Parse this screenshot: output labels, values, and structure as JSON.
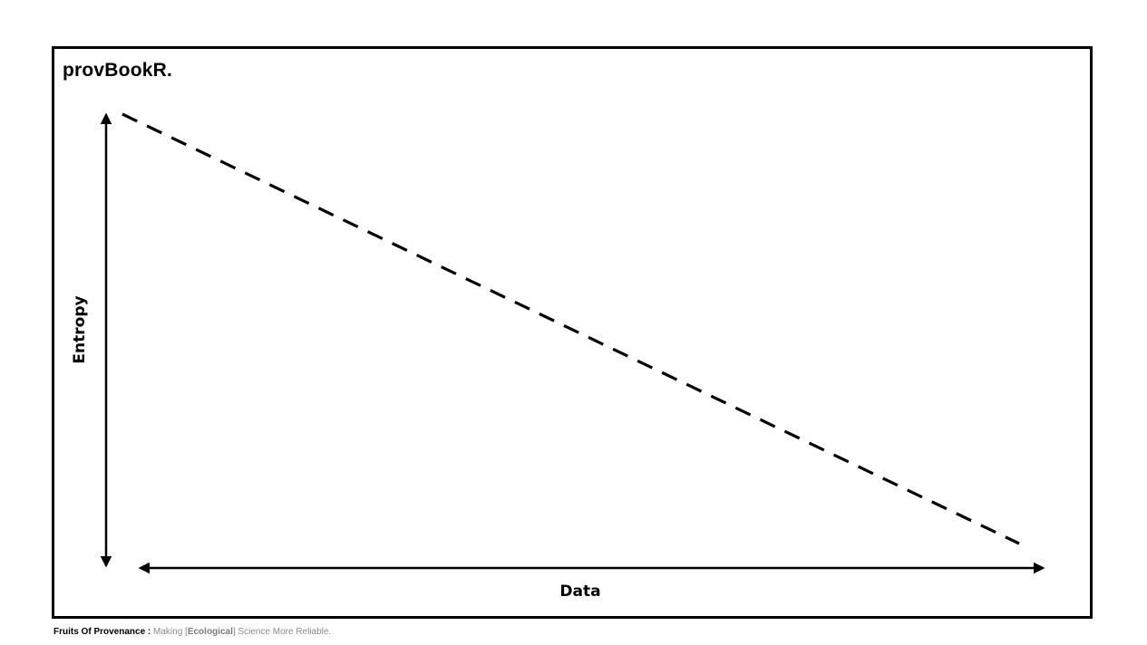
{
  "slide": {
    "title": "provBookR."
  },
  "diagram": {
    "y_axis_label": "Entropy",
    "x_axis_label": "Data",
    "trend": {
      "style": "dashed",
      "direction": "decreasing",
      "x": [
        0,
        1
      ],
      "y": [
        1,
        0
      ]
    }
  },
  "footer": {
    "brand": "Fruits Of Provenance :",
    "text_before": " Making [",
    "emphasis": "Ecological",
    "text_after": "] Science More Reliable."
  },
  "colors": {
    "ink": "#000000",
    "footer_text": "#8c8c8c",
    "background": "#ffffff"
  }
}
